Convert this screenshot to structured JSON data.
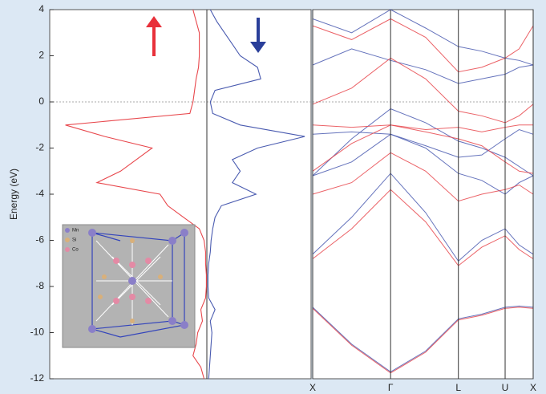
{
  "chart_data": [
    {
      "type": "dos",
      "ylabel": "Energy (eV)",
      "ylim": [
        -12,
        4
      ],
      "yticks": [
        -12,
        -10,
        -8,
        -6,
        -4,
        -2,
        0,
        2,
        4
      ],
      "xlim": [
        -10,
        6.6
      ],
      "y": [
        4,
        3.5,
        3,
        2.5,
        2,
        1.5,
        1,
        0.5,
        0,
        -0.5,
        -1,
        -1.5,
        -2,
        -2.5,
        -3,
        -3.5,
        -4,
        -4.5,
        -5,
        -5.5,
        -6,
        -6.5,
        -7,
        -7.5,
        -8,
        -8.5,
        -9,
        -9.5,
        -10,
        -10.5,
        -11,
        -11.5,
        -12
      ],
      "series": [
        {
          "color": "#e8474c",
          "values": [
            -0.9,
            -0.7,
            -0.5,
            -0.5,
            -0.5,
            -0.55,
            -0.7,
            -0.8,
            -0.9,
            -1.1,
            -9.0,
            -6.5,
            -3.5,
            -4.5,
            -5.5,
            -7.0,
            -3.0,
            -2.5,
            -1.5,
            -0.5,
            -0.2,
            -0.1,
            -0.1,
            -0.05,
            -0.05,
            -0.1,
            -0.4,
            -0.3,
            -0.6,
            -0.7,
            -0.9,
            -0.4,
            -0.2
          ]
        },
        {
          "color": "#4a5bb0",
          "values": [
            0.2,
            0.6,
            1.1,
            1.6,
            2.1,
            3.2,
            3.4,
            0.5,
            0.2,
            0.35,
            2.1,
            6.2,
            3.2,
            1.6,
            2.1,
            1.6,
            3.1,
            0.9,
            0.5,
            0.35,
            0.25,
            0.2,
            0.1,
            0.05,
            0.05,
            0.1,
            0.5,
            0.2,
            0.3,
            0.25,
            0.2,
            0.15,
            0.1
          ]
        }
      ],
      "inset_legend": [
        "Mn",
        "Si",
        "Co"
      ]
    },
    {
      "type": "line",
      "ylim": [
        -12,
        4
      ],
      "xlim": [
        0,
        2.83
      ],
      "xticks": [
        {
          "value": 0,
          "label": "X"
        },
        {
          "value": 1,
          "label": "Γ"
        },
        {
          "value": 1.87,
          "label": "L"
        },
        {
          "value": 2.47,
          "label": "U"
        },
        {
          "value": 2.83,
          "label": "X"
        }
      ],
      "x": [
        0,
        0.5,
        1,
        1.45,
        1.87,
        2.17,
        2.47,
        2.65,
        2.83
      ],
      "series": [
        {
          "color": "#4a5bb0",
          "values": [
            -8.9,
            -10.5,
            -11.7,
            -10.8,
            -9.4,
            -9.2,
            -8.9,
            -8.85,
            -8.9
          ]
        },
        {
          "color": "#4a5bb0",
          "values": [
            -6.6,
            -5.0,
            -3.1,
            -4.8,
            -6.9,
            -6.0,
            -5.5,
            -6.2,
            -6.6
          ]
        },
        {
          "color": "#4a5bb0",
          "values": [
            -3.2,
            -1.6,
            -0.3,
            -0.9,
            -1.7,
            -2.0,
            -2.4,
            -2.8,
            -3.2
          ]
        },
        {
          "color": "#4a5bb0",
          "values": [
            -3.2,
            -2.6,
            -1.4,
            -2.0,
            -3.1,
            -3.4,
            -4.0,
            -3.5,
            -3.2
          ]
        },
        {
          "color": "#4a5bb0",
          "values": [
            -1.4,
            -1.3,
            -1.4,
            -1.9,
            -2.4,
            -2.3,
            -1.6,
            -1.2,
            -1.4
          ]
        },
        {
          "color": "#4a5bb0",
          "values": [
            1.6,
            2.3,
            1.8,
            1.4,
            0.8,
            1.0,
            1.2,
            1.5,
            1.6
          ]
        },
        {
          "color": "#4a5bb0",
          "values": [
            3.6,
            3.0,
            4.0,
            3.2,
            2.4,
            2.2,
            1.9,
            1.8,
            1.6
          ]
        },
        {
          "color": "#e8474c",
          "values": [
            -8.95,
            -10.55,
            -11.75,
            -10.85,
            -9.45,
            -9.25,
            -8.95,
            -8.9,
            -8.95
          ]
        },
        {
          "color": "#e8474c",
          "values": [
            -6.8,
            -5.5,
            -3.8,
            -5.2,
            -7.1,
            -6.3,
            -5.8,
            -6.4,
            -6.8
          ]
        },
        {
          "color": "#e8474c",
          "values": [
            -3.0,
            -1.8,
            -1.0,
            -1.3,
            -1.6,
            -1.9,
            -2.6,
            -3.0,
            -3.1
          ]
        },
        {
          "color": "#e8474c",
          "values": [
            -4.0,
            -3.5,
            -2.2,
            -3.0,
            -4.3,
            -4.0,
            -3.8,
            -3.6,
            -4.0
          ]
        },
        {
          "color": "#e8474c",
          "values": [
            -1.0,
            -1.1,
            -1.0,
            -1.2,
            -1.1,
            -1.3,
            -1.1,
            -1.0,
            -1.0
          ]
        },
        {
          "color": "#e8474c",
          "values": [
            -0.1,
            0.6,
            1.9,
            1.0,
            -0.4,
            -0.6,
            -0.9,
            -0.6,
            -0.1
          ]
        },
        {
          "color": "#e8474c",
          "values": [
            3.3,
            2.7,
            3.6,
            2.8,
            1.3,
            1.5,
            1.9,
            2.3,
            3.3
          ]
        }
      ]
    }
  ]
}
